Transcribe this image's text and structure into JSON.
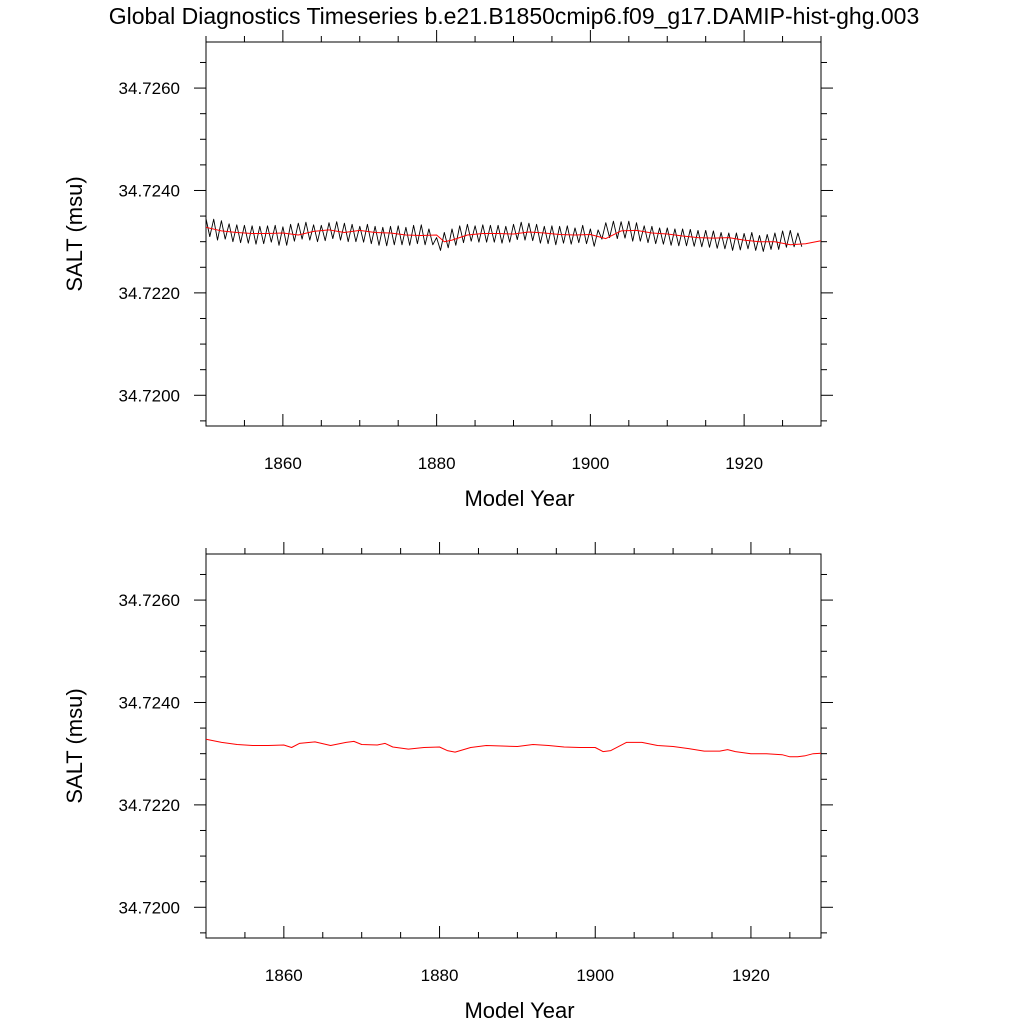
{
  "figure": {
    "title": "Global Diagnostics Timeseries b.e21.B1850cmip6.f09_g17.DAMIP-hist-ghg.003"
  },
  "colors": {
    "monthly": "#000000",
    "annual": "#ff0000",
    "frame": "#000000",
    "background": "#ffffff"
  },
  "chart_data": [
    {
      "type": "line",
      "title": "",
      "xlabel": "Model Year",
      "ylabel": "SALT (msu)",
      "xlim": [
        1850,
        1930
      ],
      "ylim": [
        34.7194,
        34.7269
      ],
      "x_ticks": [
        1860,
        1880,
        1900,
        1920
      ],
      "x_tick_labels": [
        "1860",
        "1880",
        "1900",
        "1920"
      ],
      "y_ticks": [
        34.72,
        34.722,
        34.724,
        34.726
      ],
      "y_tick_labels": [
        "34.7200",
        "34.7220",
        "34.7240",
        "34.7260"
      ],
      "grid": false,
      "legend": "none",
      "series": [
        {
          "style": "monthly",
          "color": "#000000",
          "x_start": 1850,
          "x_step": 0.5,
          "values": [
            34.72345,
            34.7231,
            34.72344,
            34.72303,
            34.72341,
            34.72305,
            34.72335,
            34.723,
            34.72333,
            34.72298,
            34.72332,
            34.72297,
            34.72331,
            34.72295,
            34.7233,
            34.72296,
            34.72331,
            34.72299,
            34.72332,
            34.72293,
            34.72329,
            34.72293,
            34.72334,
            34.72301,
            34.72336,
            34.72305,
            34.72338,
            34.72303,
            34.72333,
            34.723,
            34.72332,
            34.72302,
            34.72337,
            34.72306,
            34.72339,
            34.72303,
            34.72336,
            34.723,
            34.72334,
            34.723,
            34.7233,
            34.72299,
            34.72334,
            34.72296,
            34.7233,
            34.72293,
            34.72328,
            34.72292,
            34.7233,
            34.72294,
            34.72331,
            34.72294,
            34.72328,
            34.72293,
            34.72332,
            34.72296,
            34.72333,
            34.72294,
            34.72325,
            34.72294,
            34.72308,
            34.72283,
            34.72318,
            34.72288,
            34.72325,
            34.72293,
            34.72331,
            34.72298,
            34.72334,
            34.72301,
            34.72331,
            34.72299,
            34.72333,
            34.72299,
            34.72332,
            34.72299,
            34.72332,
            34.72297,
            34.7233,
            34.72299,
            34.72334,
            34.72304,
            34.72338,
            34.72303,
            34.72336,
            34.72302,
            34.72334,
            34.72297,
            34.7233,
            34.72296,
            34.72331,
            34.72294,
            34.7233,
            34.72297,
            34.72331,
            34.72295,
            34.72327,
            34.72298,
            34.72332,
            34.72296,
            34.72325,
            34.72291,
            34.72323,
            34.72305,
            34.72337,
            34.72308,
            34.7234,
            34.72306,
            34.72339,
            34.72307,
            34.7234,
            34.72301,
            34.72337,
            34.72301,
            34.72331,
            34.72298,
            34.7233,
            34.72296,
            34.72327,
            34.72295,
            34.72327,
            34.72293,
            34.72325,
            34.72292,
            34.72325,
            34.72292,
            34.72324,
            34.72291,
            34.72322,
            34.7229,
            34.72322,
            34.72289,
            34.72321,
            34.72287,
            34.72318,
            34.72286,
            34.72317,
            34.72283,
            34.72317,
            34.72284,
            34.72316,
            34.72286,
            34.72318,
            34.72283,
            34.72312,
            34.72281,
            34.72314,
            34.72285,
            34.72317,
            34.72285,
            34.72321,
            34.72289,
            34.72322,
            34.7229,
            34.72317,
            34.7229
          ]
        },
        {
          "style": "annual",
          "color": "#ff0000",
          "x": [
            1850,
            1852,
            1854,
            1856,
            1858,
            1860,
            1862,
            1864,
            1866,
            1868,
            1870,
            1872,
            1874,
            1876,
            1878,
            1880,
            1881,
            1882,
            1884,
            1886,
            1888,
            1890,
            1892,
            1894,
            1896,
            1898,
            1900,
            1902,
            1904,
            1906,
            1908,
            1910,
            1912,
            1914,
            1916,
            1918,
            1920,
            1922,
            1924,
            1926,
            1928,
            1930
          ],
          "values": [
            34.72328,
            34.72321,
            34.72318,
            34.72316,
            34.72316,
            34.72317,
            34.72313,
            34.7232,
            34.72323,
            34.72318,
            34.72322,
            34.72318,
            34.72317,
            34.72313,
            34.72312,
            34.72313,
            34.723,
            34.72303,
            34.72313,
            34.72316,
            34.72316,
            34.72315,
            34.72319,
            34.72317,
            34.72314,
            34.72313,
            34.72314,
            34.72306,
            34.72321,
            34.72322,
            34.72317,
            34.72315,
            34.72311,
            34.72308,
            34.72307,
            34.72308,
            34.72303,
            34.723,
            34.723,
            34.72294,
            34.72296,
            34.72302
          ]
        }
      ]
    },
    {
      "type": "line",
      "title": "",
      "xlabel": "Model Year",
      "ylabel": "SALT (msu)",
      "xlim": [
        1850,
        1929
      ],
      "ylim": [
        34.7194,
        34.7269
      ],
      "x_ticks": [
        1860,
        1880,
        1900,
        1920
      ],
      "x_tick_labels": [
        "1860",
        "1880",
        "1900",
        "1920"
      ],
      "y_ticks": [
        34.72,
        34.722,
        34.724,
        34.726
      ],
      "y_tick_labels": [
        "34.7200",
        "34.7220",
        "34.7240",
        "34.7260"
      ],
      "grid": false,
      "legend": "none",
      "series": [
        {
          "style": "annual",
          "color": "#ff0000",
          "x": [
            1850,
            1852,
            1854,
            1856,
            1858,
            1860,
            1861,
            1862,
            1864,
            1866,
            1868,
            1869,
            1870,
            1872,
            1873,
            1874,
            1876,
            1878,
            1880,
            1881,
            1882,
            1884,
            1886,
            1888,
            1890,
            1892,
            1894,
            1896,
            1898,
            1900,
            1901,
            1902,
            1904,
            1906,
            1908,
            1910,
            1912,
            1914,
            1916,
            1917,
            1918,
            1920,
            1922,
            1924,
            1925,
            1926,
            1927,
            1928,
            1929
          ],
          "values": [
            34.72328,
            34.72322,
            34.72318,
            34.72316,
            34.72316,
            34.72317,
            34.72312,
            34.7232,
            34.72323,
            34.72316,
            34.72322,
            34.72324,
            34.72318,
            34.72317,
            34.7232,
            34.72313,
            34.72309,
            34.72312,
            34.72313,
            34.72306,
            34.72303,
            34.72312,
            34.72316,
            34.72315,
            34.72314,
            34.72318,
            34.72316,
            34.72313,
            34.72312,
            34.72312,
            34.72304,
            34.72306,
            34.72322,
            34.72322,
            34.72316,
            34.72314,
            34.7231,
            34.72305,
            34.72305,
            34.72308,
            34.72304,
            34.723,
            34.723,
            34.72298,
            34.72294,
            34.72294,
            34.72296,
            34.723,
            34.72301
          ]
        }
      ]
    }
  ]
}
